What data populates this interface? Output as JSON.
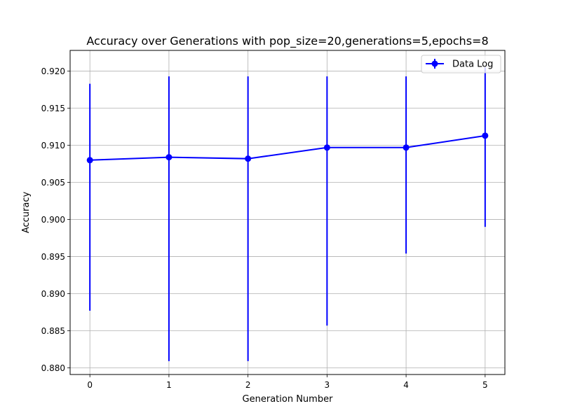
{
  "chart_data": {
    "type": "line",
    "title": "Accuracy over Generations with pop_size=20,generations=5,epochs=8",
    "xlabel": "Generation Number",
    "ylabel": "Accuracy",
    "x": [
      0,
      1,
      2,
      3,
      4,
      5
    ],
    "xticks": [
      "0",
      "1",
      "2",
      "3",
      "4",
      "5"
    ],
    "yticks": [
      "0.880",
      "0.885",
      "0.890",
      "0.895",
      "0.900",
      "0.905",
      "0.910",
      "0.915",
      "0.920"
    ],
    "xlim": [
      -0.25,
      5.25
    ],
    "ylim": [
      0.8791,
      0.9228
    ],
    "grid": true,
    "legend_position": "top-right",
    "series": [
      {
        "name": "Data Log",
        "color": "#0000ff",
        "marker": "circle",
        "values": [
          0.908,
          0.9084,
          0.9082,
          0.9097,
          0.9097,
          0.9113
        ],
        "error_low": [
          0.8877,
          0.8809,
          0.8809,
          0.8857,
          0.8954,
          0.899
        ],
        "error_high": [
          0.9183,
          0.9193,
          0.9193,
          0.9193,
          0.9193,
          0.9205
        ]
      }
    ]
  }
}
